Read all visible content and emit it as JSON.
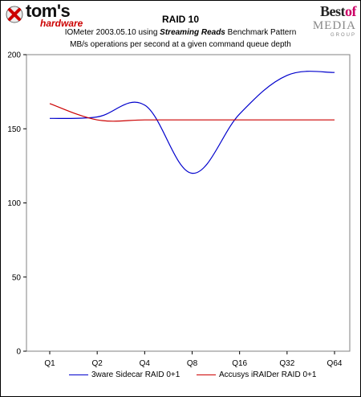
{
  "logo_left": {
    "name": "tom's",
    "sub": "hardware",
    "icon": "cross-icon"
  },
  "logo_right": {
    "line1_a": "Best",
    "line1_b": "of",
    "line2": "MEDIA",
    "line3": "GROUP"
  },
  "chart_data": {
    "type": "line",
    "title": "RAID 10",
    "subtitle_parts": [
      "IOMeter 2003.05.10 using ",
      "Streaming Reads",
      " Benchmark Pattern"
    ],
    "subtitle2": "MB/s operations per second at a given command queue depth",
    "categories": [
      "Q1",
      "Q2",
      "Q4",
      "Q8",
      "Q16",
      "Q32",
      "Q64"
    ],
    "ylim": [
      0,
      200
    ],
    "yticks": [
      0,
      50,
      100,
      150,
      200
    ],
    "grid": false,
    "legend_position": "bottom",
    "series": [
      {
        "name": "3ware Sidecar RAID 0+1",
        "color": "#0000cc",
        "values": [
          157,
          158,
          166,
          120,
          160,
          186,
          188
        ]
      },
      {
        "name": "Accusys iRAIDer RAID 0+1",
        "color": "#cc0000",
        "values": [
          167,
          156,
          156,
          156,
          156,
          156,
          156
        ]
      }
    ]
  }
}
